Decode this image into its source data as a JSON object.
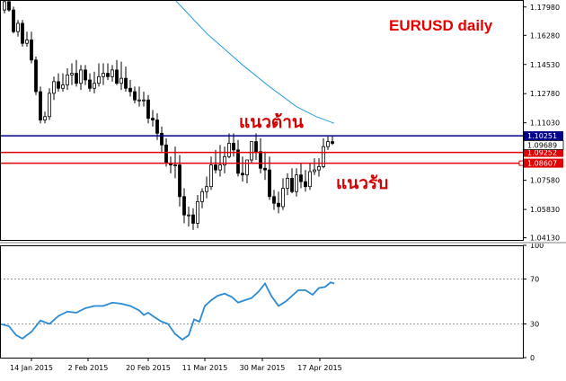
{
  "chart_data": [
    {
      "type": "candlestick",
      "title": "EURUSD daily",
      "ylim": [
        1.04,
        1.184
      ],
      "y_ticks": [
        "1.17980",
        "1.16280",
        "1.14530",
        "1.12780",
        "1.11030",
        "1.07580",
        "1.05830",
        "1.04130"
      ],
      "x_ticks": [
        "14 Jan 2015",
        "2 Feb 2015",
        "20 Feb 2015",
        "11 Mar 2015",
        "30 Mar 2015",
        "17 Apr 2015"
      ],
      "moving_average": {
        "color": "#2a9fd6",
        "x": [
          195,
          230,
          270,
          300,
          330,
          352,
          372
        ],
        "values": [
          1.184,
          1.164,
          1.145,
          1.132,
          1.12,
          1.114,
          1.11
        ]
      },
      "candles": {
        "x": [
          5,
          10,
          15,
          20,
          25,
          30,
          35,
          40,
          45,
          50,
          55,
          60,
          65,
          70,
          75,
          80,
          85,
          90,
          95,
          100,
          105,
          110,
          115,
          120,
          125,
          130,
          135,
          140,
          145,
          150,
          155,
          160,
          165,
          170,
          175,
          180,
          185,
          190,
          195,
          200,
          205,
          210,
          215,
          220,
          225,
          230,
          235,
          240,
          245,
          250,
          255,
          260,
          265,
          270,
          275,
          280,
          285,
          290,
          295,
          300,
          305,
          310,
          315,
          320,
          325,
          330,
          335,
          340,
          345,
          350,
          355,
          360,
          365,
          370
        ],
        "open": [
          1.178,
          1.183,
          1.178,
          1.165,
          1.17,
          1.158,
          1.16,
          1.148,
          1.129,
          1.112,
          1.114,
          1.128,
          1.135,
          1.131,
          1.133,
          1.139,
          1.14,
          1.134,
          1.142,
          1.136,
          1.131,
          1.134,
          1.138,
          1.14,
          1.138,
          1.142,
          1.134,
          1.137,
          1.131,
          1.129,
          1.124,
          1.124,
          1.124,
          1.113,
          1.112,
          1.104,
          1.097,
          1.086,
          1.085,
          1.085,
          1.066,
          1.055,
          1.055,
          1.05,
          1.063,
          1.069,
          1.072,
          1.085,
          1.082,
          1.085,
          1.09,
          1.098,
          1.094,
          1.08,
          1.079,
          1.088,
          1.099,
          1.093,
          1.083,
          1.082,
          1.066,
          1.062,
          1.06,
          1.071,
          1.077,
          1.069,
          1.079,
          1.075,
          1.072,
          1.081,
          1.082,
          1.084,
          1.096,
          1.099
        ],
        "high": [
          1.184,
          1.184,
          1.18,
          1.172,
          1.172,
          1.165,
          1.165,
          1.15,
          1.132,
          1.117,
          1.131,
          1.138,
          1.14,
          1.14,
          1.143,
          1.146,
          1.148,
          1.145,
          1.145,
          1.14,
          1.141,
          1.146,
          1.146,
          1.146,
          1.145,
          1.148,
          1.147,
          1.144,
          1.136,
          1.132,
          1.132,
          1.129,
          1.127,
          1.118,
          1.116,
          1.108,
          1.101,
          1.09,
          1.096,
          1.091,
          1.071,
          1.06,
          1.059,
          1.067,
          1.071,
          1.078,
          1.09,
          1.094,
          1.097,
          1.096,
          1.104,
          1.104,
          1.1,
          1.09,
          1.087,
          1.099,
          1.104,
          1.101,
          1.093,
          1.09,
          1.07,
          1.069,
          1.077,
          1.08,
          1.083,
          1.083,
          1.086,
          1.082,
          1.086,
          1.089,
          1.089,
          1.101,
          1.102,
          1.102
        ],
        "low": [
          1.176,
          1.177,
          1.164,
          1.162,
          1.156,
          1.156,
          1.146,
          1.127,
          1.11,
          1.11,
          1.112,
          1.124,
          1.129,
          1.129,
          1.13,
          1.133,
          1.132,
          1.13,
          1.133,
          1.129,
          1.128,
          1.132,
          1.133,
          1.136,
          1.135,
          1.133,
          1.13,
          1.129,
          1.126,
          1.122,
          1.12,
          1.12,
          1.11,
          1.108,
          1.1,
          1.093,
          1.084,
          1.08,
          1.077,
          1.06,
          1.05,
          1.048,
          1.046,
          1.047,
          1.059,
          1.065,
          1.07,
          1.08,
          1.078,
          1.08,
          1.089,
          1.09,
          1.078,
          1.075,
          1.074,
          1.086,
          1.088,
          1.08,
          1.076,
          1.064,
          1.058,
          1.056,
          1.058,
          1.067,
          1.068,
          1.066,
          1.071,
          1.069,
          1.07,
          1.079,
          1.078,
          1.083,
          1.094,
          1.097
        ],
        "close": [
          1.183,
          1.178,
          1.165,
          1.17,
          1.158,
          1.16,
          1.148,
          1.129,
          1.112,
          1.114,
          1.128,
          1.135,
          1.131,
          1.133,
          1.139,
          1.14,
          1.134,
          1.142,
          1.136,
          1.131,
          1.134,
          1.138,
          1.14,
          1.138,
          1.142,
          1.134,
          1.137,
          1.131,
          1.129,
          1.124,
          1.124,
          1.124,
          1.113,
          1.112,
          1.104,
          1.097,
          1.086,
          1.085,
          1.085,
          1.066,
          1.055,
          1.055,
          1.05,
          1.063,
          1.069,
          1.072,
          1.085,
          1.082,
          1.085,
          1.09,
          1.098,
          1.094,
          1.08,
          1.079,
          1.088,
          1.099,
          1.093,
          1.083,
          1.082,
          1.066,
          1.062,
          1.06,
          1.071,
          1.077,
          1.069,
          1.079,
          1.075,
          1.072,
          1.081,
          1.082,
          1.084,
          1.096,
          1.099,
          1.098
        ]
      },
      "horizontal_lines": [
        {
          "value": 1.10251,
          "label": "1.10251",
          "color": "#00008b",
          "kind": "resistance"
        },
        {
          "value": 1.09252,
          "label": "1.09252",
          "color": "#e00000",
          "kind": "support"
        },
        {
          "value": 1.08607,
          "label": "1.08607",
          "color": "#e00000",
          "kind": "support"
        }
      ],
      "price_tag": {
        "value": 1.09689,
        "label": "1.09689"
      },
      "annotations": [
        {
          "text": "แนวต้าน",
          "color": "#d40000"
        },
        {
          "text": "แนวรับ",
          "color": "#d40000"
        }
      ]
    },
    {
      "type": "line",
      "ylim": [
        0,
        100
      ],
      "y_ticks": [
        "100",
        "70",
        "30",
        "0"
      ],
      "levels": [
        70,
        30
      ],
      "series": [
        {
          "color": "#2a8ad4",
          "x": [
            0,
            10,
            18,
            25,
            35,
            45,
            55,
            65,
            75,
            85,
            95,
            105,
            115,
            125,
            135,
            145,
            155,
            160,
            165,
            172,
            180,
            187,
            195,
            203,
            210,
            216,
            222,
            228,
            235,
            242,
            250,
            258,
            265,
            272,
            280,
            288,
            295,
            302,
            310,
            318,
            325,
            332,
            340,
            348,
            355,
            362,
            368,
            372
          ],
          "values": [
            30,
            28,
            20,
            17,
            23,
            33,
            30,
            37,
            41,
            40,
            44,
            46,
            46,
            49,
            48,
            46,
            42,
            38,
            40,
            36,
            32,
            30,
            21,
            16,
            20,
            34,
            32,
            46,
            51,
            55,
            57,
            54,
            49,
            51,
            53,
            59,
            66,
            55,
            46,
            50,
            55,
            60,
            60,
            56,
            62,
            63,
            67,
            66
          ]
        }
      ]
    }
  ]
}
